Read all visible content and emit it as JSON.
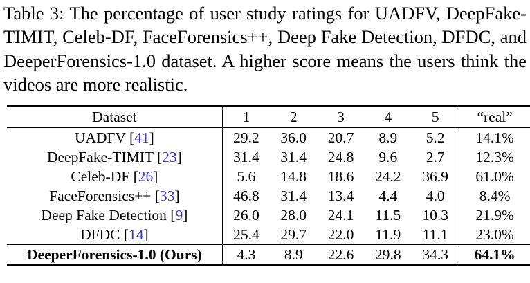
{
  "caption": "Table 3: The percentage of user study ratings for UADFV, DeepFake-TIMIT, Celeb-DF, FaceForensics++, Deep Fake Detection, DFDC, and DeeperForensics-1.0 dataset. A higher score means the users think the videos are more realistic.",
  "table": {
    "headers": [
      "Dataset",
      "1",
      "2",
      "3",
      "4",
      "5",
      "“real”"
    ],
    "rows": [
      {
        "name": "UADFV ",
        "ref": "41",
        "values": [
          "29.2",
          "36.0",
          "20.7",
          "8.9",
          "5.2",
          "14.1%"
        ]
      },
      {
        "name": "DeepFake-TIMIT ",
        "ref": "23",
        "values": [
          "31.4",
          "31.4",
          "24.8",
          "9.6",
          "2.7",
          "12.3%"
        ]
      },
      {
        "name": "Celeb-DF ",
        "ref": "26",
        "values": [
          "5.6",
          "14.8",
          "18.6",
          "24.2",
          "36.9",
          "61.0%"
        ]
      },
      {
        "name": "FaceForensics++ ",
        "ref": "33",
        "values": [
          "46.8",
          "31.4",
          "13.4",
          "4.4",
          "4.0",
          "8.4%"
        ]
      },
      {
        "name": "Deep Fake Detection ",
        "ref": "9",
        "values": [
          "26.0",
          "28.0",
          "24.1",
          "11.5",
          "10.3",
          "21.9%"
        ]
      },
      {
        "name": "DFDC ",
        "ref": "14",
        "values": [
          "25.4",
          "29.7",
          "22.0",
          "11.9",
          "11.1",
          "23.0%"
        ]
      }
    ],
    "ours": {
      "name": "DeeperForensics-1.0 (Ours)",
      "values": [
        "4.3",
        "8.9",
        "22.6",
        "29.8",
        "34.3",
        "64.1%"
      ]
    }
  },
  "colors": {
    "citation": "#3a3ad0",
    "text": "#000000"
  }
}
